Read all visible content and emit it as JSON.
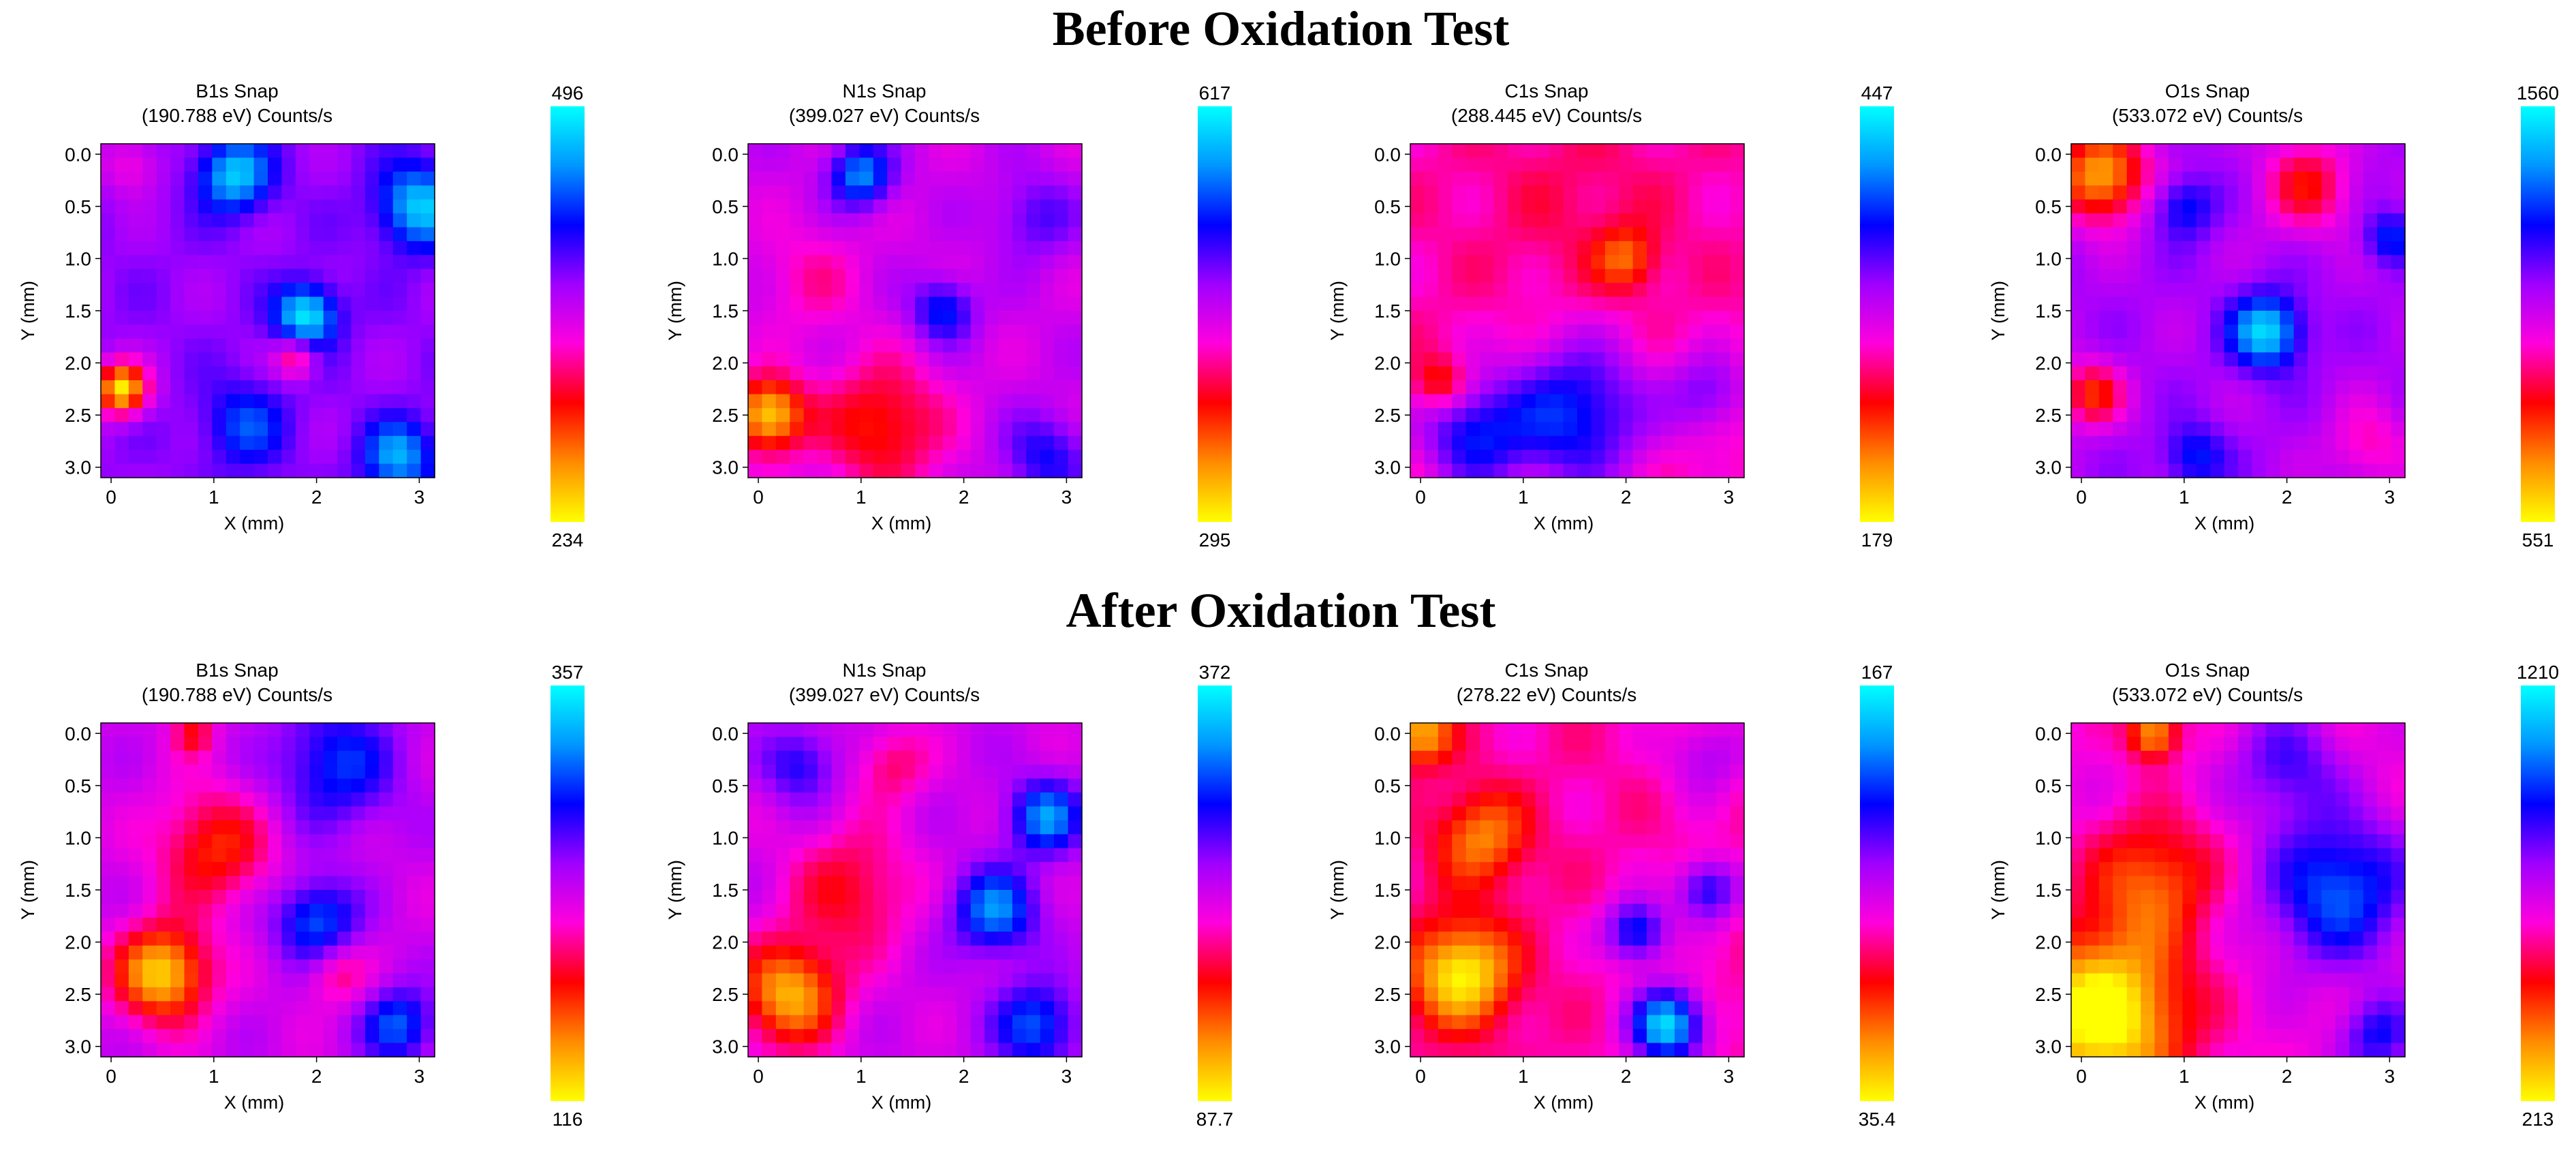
{
  "sections": {
    "before_title": "Before Oxidation Test",
    "after_title": "After Oxidation Test"
  },
  "colors": {
    "colormap": [
      "#ffff00",
      "#ff8c00",
      "#ff0000",
      "#ff00dc",
      "#a000ff",
      "#0000ff",
      "#0096ff",
      "#00ffff"
    ]
  },
  "chart_data": [
    {
      "type": "heatmap",
      "row": "before",
      "title": "B1s Snap",
      "subtitle": "(190.788 eV)   Counts/s",
      "xlabel": "X (mm)",
      "ylabel": "Y (mm)",
      "xlim": [
        -0.1,
        3.15
      ],
      "ylim": [
        -0.1,
        3.1
      ],
      "xticks": [
        "0",
        "1",
        "2",
        "3"
      ],
      "yticks": [
        "0.0",
        "0.5",
        "1.0",
        "1.5",
        "2.0",
        "2.5",
        "3.0"
      ],
      "vmin": "234",
      "vmax": "496",
      "base": 0.58,
      "blobs": [
        [
          1.2,
          0.2,
          0.35,
          0.35
        ],
        [
          1.9,
          1.55,
          0.3,
          0.4
        ],
        [
          3.0,
          0.5,
          0.4,
          0.35
        ],
        [
          0.1,
          2.25,
          0.25,
          -0.55
        ],
        [
          1.8,
          1.95,
          0.2,
          -0.25
        ],
        [
          1.3,
          2.6,
          0.4,
          0.2
        ],
        [
          2.8,
          2.9,
          0.35,
          0.3
        ],
        [
          0.2,
          0.1,
          0.3,
          -0.15
        ]
      ]
    },
    {
      "type": "heatmap",
      "row": "before",
      "title": "N1s Snap",
      "subtitle": "(399.027 eV)   Counts/s",
      "xlabel": "X (mm)",
      "ylabel": "Y (mm)",
      "xlim": [
        -0.1,
        3.15
      ],
      "ylim": [
        -0.1,
        3.1
      ],
      "xticks": [
        "0",
        "1",
        "2",
        "3"
      ],
      "yticks": [
        "0.0",
        "0.5",
        "1.0",
        "1.5",
        "2.0",
        "2.5",
        "3.0"
      ],
      "vmin": "295",
      "vmax": "617",
      "base": 0.5,
      "blobs": [
        [
          1.0,
          0.2,
          0.3,
          0.35
        ],
        [
          1.8,
          1.5,
          0.3,
          0.25
        ],
        [
          0.1,
          2.5,
          0.35,
          -0.45
        ],
        [
          1.2,
          2.6,
          0.6,
          -0.25
        ],
        [
          2.7,
          0.6,
          0.4,
          0.15
        ],
        [
          2.8,
          2.9,
          0.4,
          0.2
        ],
        [
          0.5,
          1.2,
          0.5,
          -0.1
        ]
      ]
    },
    {
      "type": "heatmap",
      "row": "before",
      "title": "C1s Snap",
      "subtitle": "(288.445 eV)   Counts/s",
      "xlabel": "X (mm)",
      "ylabel": "Y (mm)",
      "xlim": [
        -0.1,
        3.15
      ],
      "ylim": [
        -0.1,
        3.1
      ],
      "xticks": [
        "0",
        "1",
        "2",
        "3"
      ],
      "yticks": [
        "0.0",
        "0.5",
        "1.0",
        "1.5",
        "2.0",
        "2.5",
        "3.0"
      ],
      "vmin": "179",
      "vmax": "447",
      "base": 0.4,
      "blobs": [
        [
          1.5,
          0.5,
          0.9,
          -0.05
        ],
        [
          1.5,
          2.5,
          0.7,
          0.35
        ],
        [
          0.5,
          2.7,
          0.5,
          0.3
        ],
        [
          2.8,
          2.3,
          0.4,
          0.2
        ],
        [
          2.0,
          1.0,
          0.3,
          -0.2
        ],
        [
          0.2,
          2.2,
          0.25,
          -0.2
        ]
      ]
    },
    {
      "type": "heatmap",
      "row": "before",
      "title": "O1s Snap",
      "subtitle": "(533.072 eV)   Counts/s",
      "xlabel": "X (mm)",
      "ylabel": "Y (mm)",
      "xlim": [
        -0.1,
        3.15
      ],
      "ylim": [
        -0.1,
        3.1
      ],
      "xticks": [
        "0",
        "1",
        "2",
        "3"
      ],
      "yticks": [
        "0.0",
        "0.5",
        "1.0",
        "1.5",
        "2.0",
        "2.5",
        "3.0"
      ],
      "vmin": "551",
      "vmax": "1560",
      "base": 0.55,
      "blobs": [
        [
          1.8,
          1.7,
          0.35,
          0.4
        ],
        [
          1.0,
          0.5,
          0.3,
          0.2
        ],
        [
          0.2,
          0.2,
          0.45,
          -0.45
        ],
        [
          0.1,
          2.3,
          0.3,
          -0.3
        ],
        [
          2.2,
          0.3,
          0.45,
          -0.25
        ],
        [
          2.8,
          2.8,
          0.4,
          -0.15
        ],
        [
          3.0,
          0.8,
          0.25,
          0.2
        ],
        [
          1.1,
          2.9,
          0.3,
          0.2
        ]
      ]
    },
    {
      "type": "heatmap",
      "row": "after",
      "title": "B1s Snap",
      "subtitle": "(190.788 eV)   Counts/s",
      "xlabel": "X (mm)",
      "ylabel": "Y (mm)",
      "xlim": [
        -0.1,
        3.15
      ],
      "ylim": [
        -0.1,
        3.1
      ],
      "xticks": [
        "0",
        "1",
        "2",
        "3"
      ],
      "yticks": [
        "0.0",
        "0.5",
        "1.0",
        "1.5",
        "2.0",
        "2.5",
        "3.0"
      ],
      "vmin": "116",
      "vmax": "357",
      "base": 0.5,
      "blobs": [
        [
          0.5,
          2.3,
          0.45,
          -0.45
        ],
        [
          1.0,
          1.1,
          0.55,
          -0.25
        ],
        [
          2.2,
          0.3,
          0.6,
          0.25
        ],
        [
          2.0,
          1.8,
          0.4,
          0.3
        ],
        [
          2.8,
          2.8,
          0.35,
          0.3
        ],
        [
          0.8,
          0.0,
          0.2,
          -0.2
        ],
        [
          2.2,
          2.3,
          0.3,
          -0.15
        ]
      ]
    },
    {
      "type": "heatmap",
      "row": "after",
      "title": "N1s Snap",
      "subtitle": "(399.027 eV)   Counts/s",
      "xlabel": "X (mm)",
      "ylabel": "Y (mm)",
      "xlim": [
        -0.1,
        3.15
      ],
      "ylim": [
        -0.1,
        3.1
      ],
      "xticks": [
        "0",
        "1",
        "2",
        "3"
      ],
      "yticks": [
        "0.0",
        "0.5",
        "1.0",
        "1.5",
        "2.0",
        "2.5",
        "3.0"
      ],
      "vmin": "87.7",
      "vmax": "372",
      "base": 0.5,
      "blobs": [
        [
          0.3,
          2.5,
          0.5,
          -0.4
        ],
        [
          0.9,
          1.5,
          0.6,
          -0.2
        ],
        [
          2.3,
          1.7,
          0.4,
          0.35
        ],
        [
          2.8,
          0.8,
          0.35,
          0.35
        ],
        [
          0.4,
          0.3,
          0.35,
          0.2
        ],
        [
          2.7,
          2.8,
          0.4,
          0.3
        ],
        [
          1.3,
          0.3,
          0.35,
          -0.15
        ]
      ]
    },
    {
      "type": "heatmap",
      "row": "after",
      "title": "C1s Snap",
      "subtitle": "(278.22 eV)   Counts/s",
      "xlabel": "X (mm)",
      "ylabel": "Y (mm)",
      "xlim": [
        -0.1,
        3.15
      ],
      "ylim": [
        -0.1,
        3.1
      ],
      "xticks": [
        "0",
        "1",
        "2",
        "3"
      ],
      "yticks": [
        "0.0",
        "0.5",
        "1.0",
        "1.5",
        "2.0",
        "2.5",
        "3.0"
      ],
      "vmin": "35.4",
      "vmax": "167",
      "base": 0.4,
      "blobs": [
        [
          0.4,
          2.3,
          0.5,
          -0.4
        ],
        [
          0.6,
          1.0,
          0.45,
          -0.25
        ],
        [
          2.4,
          2.8,
          0.35,
          0.55
        ],
        [
          2.1,
          1.9,
          0.3,
          0.35
        ],
        [
          2.8,
          1.5,
          0.3,
          0.3
        ],
        [
          2.8,
          0.2,
          0.4,
          0.15
        ],
        [
          0.0,
          0.0,
          0.3,
          -0.3
        ]
      ]
    },
    {
      "type": "heatmap",
      "row": "after",
      "title": "O1s Snap",
      "subtitle": "(533.072 eV)   Counts/s",
      "xlabel": "X (mm)",
      "ylabel": "Y (mm)",
      "xlim": [
        -0.1,
        3.15
      ],
      "ylim": [
        -0.1,
        3.1
      ],
      "xticks": [
        "0",
        "1",
        "2",
        "3"
      ],
      "yticks": [
        "0.0",
        "0.5",
        "1.0",
        "1.5",
        "2.0",
        "2.5",
        "3.0"
      ],
      "vmin": "213",
      "vmax": "1210",
      "base": 0.45,
      "blobs": [
        [
          0.2,
          2.7,
          0.8,
          -0.5
        ],
        [
          0.7,
          1.4,
          0.6,
          -0.25
        ],
        [
          2.5,
          1.5,
          0.7,
          0.35
        ],
        [
          2.9,
          2.9,
          0.35,
          0.25
        ],
        [
          0.7,
          0.0,
          0.25,
          -0.35
        ],
        [
          2.0,
          0.3,
          0.5,
          0.2
        ]
      ]
    }
  ]
}
